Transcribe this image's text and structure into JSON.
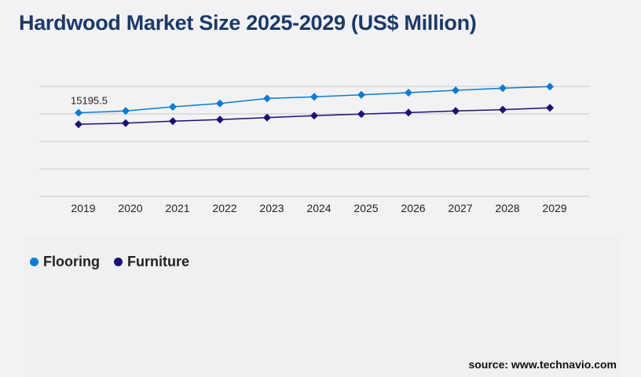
{
  "chart_data": {
    "type": "line",
    "title": "Hardwood Market Size 2025-2029 (US$ Million)",
    "categories": [
      "2019",
      "2020",
      "2021",
      "2022",
      "2023",
      "2024",
      "2025",
      "2026",
      "2027",
      "2028",
      "2029"
    ],
    "series": [
      {
        "name": "Flooring",
        "color": "#0a7bd1",
        "values": [
          15195.5,
          15530,
          16290,
          16900,
          17810,
          18100,
          18470,
          18860,
          19290,
          19670,
          19960
        ]
      },
      {
        "name": "Furniture",
        "color": "#1a1275",
        "values": [
          13100,
          13330,
          13670,
          13960,
          14330,
          14670,
          14960,
          15240,
          15530,
          15760,
          16100
        ]
      }
    ],
    "data_labels": [
      {
        "series": "Flooring",
        "category": "2019",
        "text": "15195.5"
      }
    ],
    "ylim": [
      0,
      20000
    ],
    "y_gridlines": [
      0,
      5000,
      10000,
      15000,
      20000
    ],
    "y_tick_labels_shown": false,
    "grid": true,
    "legend": "bottom-left",
    "source": "source: www.technavio.com"
  }
}
